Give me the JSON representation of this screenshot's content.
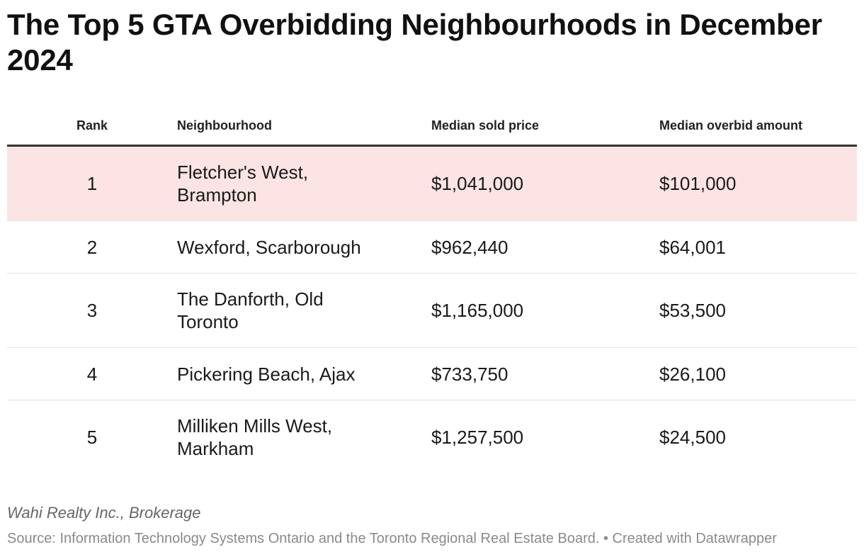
{
  "chart_data": {
    "type": "table",
    "title": "The Top 5 GTA Overbidding Neighbourhoods in December 2024",
    "columns": [
      "Rank",
      "Neighbourhood",
      "Median sold price",
      "Median overbid amount"
    ],
    "rows": [
      {
        "rank": "1",
        "neighbourhood": "Fletcher's West, Brampton",
        "median_sold_price": "$1,041,000",
        "median_overbid_amount": "$101,000"
      },
      {
        "rank": "2",
        "neighbourhood": "Wexford, Scarborough",
        "median_sold_price": "$962,440",
        "median_overbid_amount": "$64,001"
      },
      {
        "rank": "3",
        "neighbourhood": "The Danforth, Old Toronto",
        "median_sold_price": "$1,165,000",
        "median_overbid_amount": "$53,500"
      },
      {
        "rank": "4",
        "neighbourhood": "Pickering Beach, Ajax",
        "median_sold_price": "$733,750",
        "median_overbid_amount": "$26,100"
      },
      {
        "rank": "5",
        "neighbourhood": "Milliken Mills West, Markham",
        "median_sold_price": "$1,257,500",
        "median_overbid_amount": "$24,500"
      }
    ],
    "highlighted_row": 1,
    "highlight_color": "#fbe4e3"
  },
  "footer": {
    "byline": "Wahi Realty Inc., Brokerage",
    "source": "Source: Information Technology Systems Ontario and the Toronto Regional Real Estate Board. • Created with Datawrapper"
  }
}
